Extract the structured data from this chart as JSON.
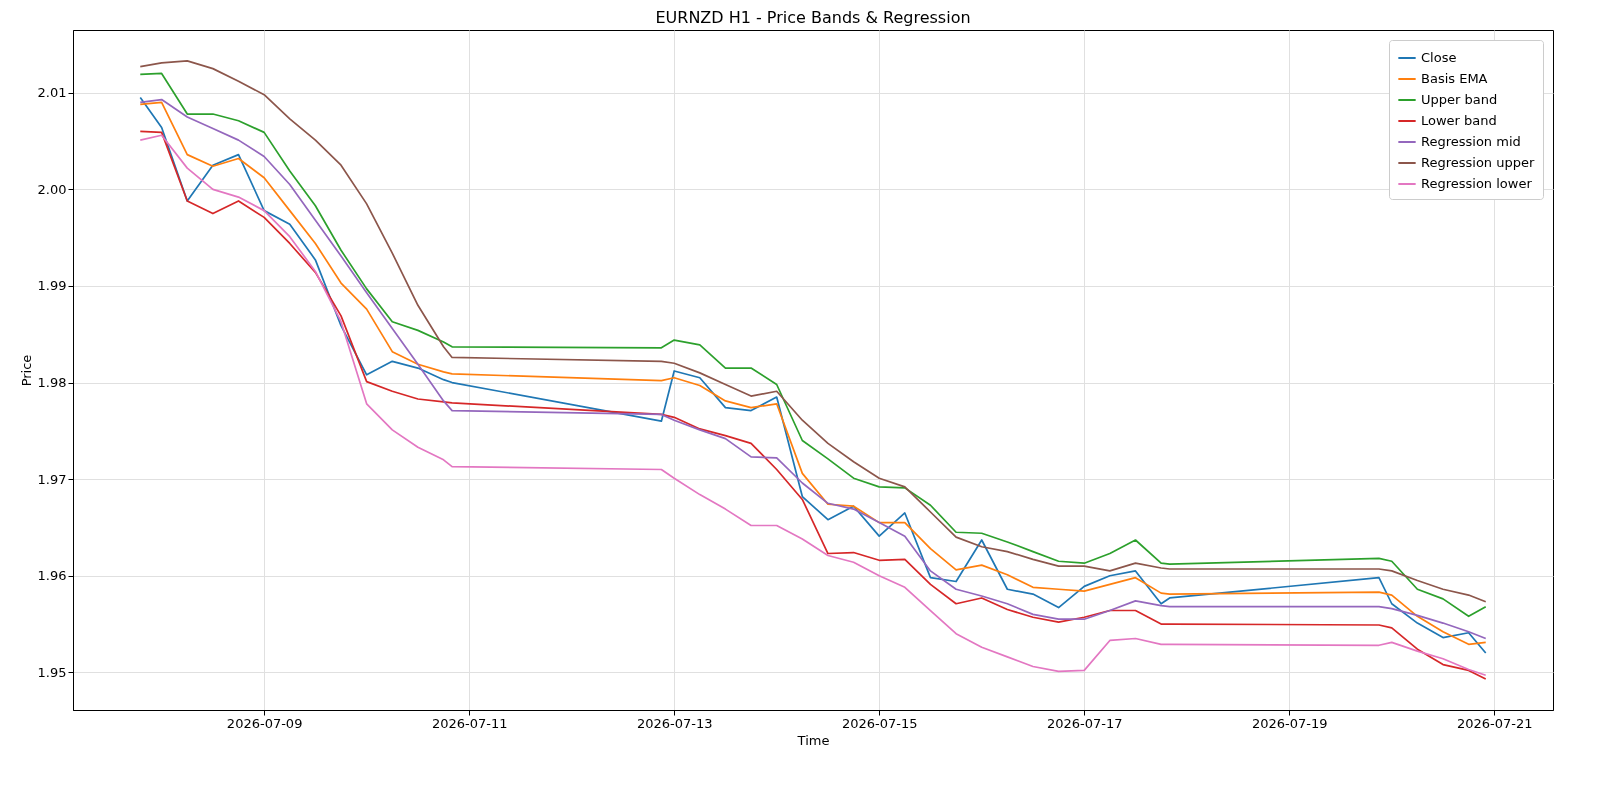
{
  "chart_data": {
    "type": "line",
    "title": "EURNZD H1 - Price Bands & Regression",
    "xlabel": "Time",
    "ylabel": "Price",
    "x": [
      "2026-07-07T19:00",
      "2026-07-08T00:00",
      "2026-07-08T06:00",
      "2026-07-08T12:00",
      "2026-07-08T18:00",
      "2026-07-09T00:00",
      "2026-07-09T06:00",
      "2026-07-09T12:00",
      "2026-07-09T18:00",
      "2026-07-10T00:00",
      "2026-07-10T06:00",
      "2026-07-10T12:00",
      "2026-07-10T18:00",
      "2026-07-10T20:00",
      "2026-07-12T21:00",
      "2026-07-13T00:00",
      "2026-07-13T06:00",
      "2026-07-13T12:00",
      "2026-07-13T18:00",
      "2026-07-14T00:00",
      "2026-07-14T06:00",
      "2026-07-14T12:00",
      "2026-07-14T18:00",
      "2026-07-15T00:00",
      "2026-07-15T06:00",
      "2026-07-15T12:00",
      "2026-07-15T18:00",
      "2026-07-16T00:00",
      "2026-07-16T06:00",
      "2026-07-16T12:00",
      "2026-07-16T18:00",
      "2026-07-17T00:00",
      "2026-07-17T06:00",
      "2026-07-17T12:00",
      "2026-07-17T18:00",
      "2026-07-17T20:00",
      "2026-07-19T21:00",
      "2026-07-20T00:00",
      "2026-07-20T06:00",
      "2026-07-20T12:00",
      "2026-07-20T18:00",
      "2026-07-20T22:00"
    ],
    "series": [
      {
        "name": "Close",
        "color": "#1f77b4",
        "values": [
          2.0095,
          2.0064,
          1.9988,
          2.0025,
          2.0036,
          1.9978,
          1.9964,
          1.9927,
          1.9859,
          1.9808,
          1.9822,
          1.9815,
          1.9803,
          1.98,
          1.976,
          1.9812,
          1.9805,
          1.9774,
          1.9771,
          1.9785,
          1.9682,
          1.9658,
          1.9672,
          1.9641,
          1.9665,
          1.9598,
          1.9594,
          1.9637,
          1.9586,
          1.9581,
          1.9567,
          1.9589,
          1.96,
          1.9605,
          1.9571,
          1.9577,
          1.9598,
          1.9571,
          1.9551,
          1.9536,
          1.9541,
          1.952
        ]
      },
      {
        "name": "Basis EMA",
        "color": "#ff7f0e",
        "values": [
          2.0088,
          2.009,
          2.0036,
          2.0024,
          2.0032,
          2.0012,
          1.9978,
          1.9944,
          1.9903,
          1.9876,
          1.9832,
          1.9819,
          1.9811,
          1.9809,
          1.9802,
          1.9805,
          1.9797,
          1.9781,
          1.9774,
          1.9778,
          1.9706,
          1.9674,
          1.9672,
          1.9655,
          1.9655,
          1.9628,
          1.9606,
          1.9611,
          1.9601,
          1.9588,
          1.9586,
          1.9584,
          1.9591,
          1.9598,
          1.9582,
          1.9581,
          1.9583,
          1.958,
          1.9558,
          1.9542,
          1.9529,
          1.9531
        ]
      },
      {
        "name": "Upper band",
        "color": "#2ca02c",
        "values": [
          2.0119,
          2.012,
          2.0078,
          2.0078,
          2.0071,
          2.0059,
          2.0019,
          1.9983,
          1.9937,
          1.9897,
          1.9863,
          1.9854,
          1.9842,
          1.9837,
          1.9836,
          1.9844,
          1.9839,
          1.9815,
          1.9815,
          1.9798,
          1.974,
          1.9721,
          1.9701,
          1.9692,
          1.9691,
          1.9673,
          1.9645,
          1.9644,
          1.9635,
          1.9625,
          1.9615,
          1.9613,
          1.9623,
          1.9637,
          1.9613,
          1.9612,
          1.9618,
          1.9615,
          1.9586,
          1.9576,
          1.9558,
          1.9568
        ]
      },
      {
        "name": "Lower band",
        "color": "#d62728",
        "values": [
          2.006,
          2.0059,
          1.9988,
          1.9975,
          1.9988,
          1.9971,
          1.9944,
          1.9914,
          1.9869,
          1.9801,
          1.9791,
          1.9783,
          1.978,
          1.9779,
          1.9767,
          1.9764,
          1.9752,
          1.9745,
          1.9737,
          1.971,
          1.9679,
          1.9623,
          1.9624,
          1.9616,
          1.9617,
          1.9591,
          1.9571,
          1.9577,
          1.9565,
          1.9557,
          1.9552,
          1.9557,
          1.9564,
          1.9564,
          1.955,
          1.955,
          1.9549,
          1.9546,
          1.9524,
          1.9508,
          1.9502,
          1.9493
        ]
      },
      {
        "name": "Regression mid",
        "color": "#9467bd",
        "values": [
          2.009,
          2.0093,
          2.0075,
          2.0063,
          2.0051,
          2.0034,
          2.0005,
          1.9968,
          1.9931,
          1.9893,
          1.9856,
          1.9819,
          1.9781,
          1.9771,
          1.9767,
          1.9761,
          1.9751,
          1.9742,
          1.9723,
          1.9722,
          1.9696,
          1.9675,
          1.9669,
          1.9655,
          1.9641,
          1.9605,
          1.9586,
          1.9579,
          1.9571,
          1.956,
          1.9555,
          1.9555,
          1.9564,
          1.9574,
          1.9569,
          1.9568,
          1.9568,
          1.9566,
          1.9559,
          1.9551,
          1.9542,
          1.9535
        ]
      },
      {
        "name": "Regression upper",
        "color": "#8c564b",
        "values": [
          2.0127,
          2.0131,
          2.0133,
          2.0125,
          2.0112,
          2.0098,
          2.0073,
          2.0051,
          2.0025,
          1.9985,
          1.9934,
          1.988,
          1.9837,
          1.9826,
          1.9822,
          1.982,
          1.981,
          1.9798,
          1.9786,
          1.9791,
          1.9761,
          1.9737,
          1.9718,
          1.9701,
          1.9692,
          1.9666,
          1.964,
          1.963,
          1.9625,
          1.9617,
          1.961,
          1.961,
          1.9605,
          1.9613,
          1.9608,
          1.9607,
          1.9607,
          1.9605,
          1.9595,
          1.9586,
          1.958,
          1.9573
        ]
      },
      {
        "name": "Regression lower",
        "color": "#e377c2",
        "values": [
          2.0051,
          2.0056,
          2.0022,
          2.0,
          1.9992,
          1.9978,
          1.9951,
          1.9915,
          1.9863,
          1.9778,
          1.9751,
          1.9733,
          1.972,
          1.9713,
          1.971,
          1.9701,
          1.9684,
          1.9669,
          1.9652,
          1.9652,
          1.9638,
          1.9621,
          1.9614,
          1.96,
          1.9588,
          1.9564,
          1.954,
          1.9526,
          1.9516,
          1.9506,
          1.9501,
          1.9502,
          1.9533,
          1.9535,
          1.9529,
          1.9529,
          1.9528,
          1.9531,
          1.9522,
          1.9514,
          1.9503,
          1.9497
        ]
      }
    ],
    "xlim": [
      "2026-07-07T03:15",
      "2026-07-21T13:45"
    ],
    "xticks": [
      "2026-07-09",
      "2026-07-11",
      "2026-07-13",
      "2026-07-15",
      "2026-07-17",
      "2026-07-19",
      "2026-07-21"
    ],
    "ylim": [
      1.9461,
      2.0165
    ],
    "yticks": [
      1.95,
      1.96,
      1.97,
      1.98,
      1.99,
      {
        "value": 2.0,
        "label": "2.00"
      },
      2.01
    ],
    "grid": true,
    "legend": "top right",
    "marker": "none",
    "line_style": "solid"
  }
}
